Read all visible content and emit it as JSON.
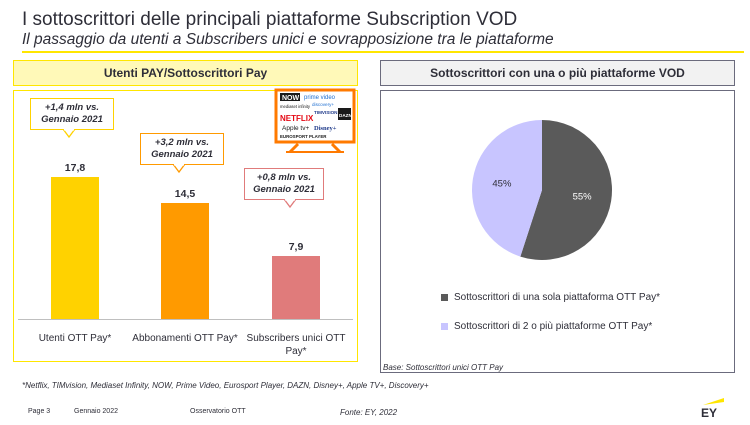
{
  "header": {
    "title": "I sottoscrittori delle principali piattaforme Subscription VOD",
    "subtitle": "Il passaggio da utenti a Subscribers unici e sovrapposizione tra le piattaforme"
  },
  "left_panel": {
    "header": "Utenti PAY/Sottoscrittori Pay",
    "tv_logos": [
      "NOW",
      "prime video",
      "mediaset infinity",
      "discovery+",
      "TIMVISION",
      "DAZN",
      "NETFLIX",
      "Apple tv+",
      "Disney+",
      "EUROSPORT PLAYER"
    ]
  },
  "right_panel": {
    "header": "Sottoscrittori con una o più piattaforme VOD",
    "base_note": "Base: Sottoscrittori unici OTT Pay"
  },
  "chart_data": [
    {
      "type": "bar",
      "categories": [
        "Utenti OTT Pay*",
        "Abbonamenti OTT Pay*",
        "Subscribers unici OTT Pay*"
      ],
      "values": [
        17.8,
        14.5,
        7.9
      ],
      "value_labels": [
        "17,8",
        "14,5",
        "7,9"
      ],
      "colors": [
        "#ffd200",
        "#ff9a00",
        "#e07b7b"
      ],
      "callouts": [
        "+1,4 mln vs. Gennaio 2021",
        "+3,2 mln vs. Gennaio 2021",
        "+0,8 mln vs. Gennaio 2021"
      ],
      "callout_lines": [
        [
          "+1,4 mln vs.",
          "Gennaio 2021"
        ],
        [
          "+3,2 mln vs.",
          "Gennaio 2021"
        ],
        [
          "+0,8 mln vs.",
          "Gennaio 2021"
        ]
      ],
      "callout_colors": [
        "#ffd200",
        "#ff9a00",
        "#e07b7b"
      ],
      "ylim": [
        0,
        20
      ],
      "grid": false
    },
    {
      "type": "pie",
      "labels": [
        "Sottoscrittori di una sola piattaforma OTT Pay*",
        "Sottoscrittori di 2 o più piattaforme OTT Pay*"
      ],
      "values": [
        55,
        45
      ],
      "value_labels": [
        "55%",
        "45%"
      ],
      "colors": [
        "#5a5a5a",
        "#c8c5ff"
      ],
      "legend": "bottom"
    }
  ],
  "footer": {
    "footnote": "*Netflix, TIMvision, Mediaset Infinity, NOW, Prime Video, Eurosport Player, DAZN, Disney+, Apple TV+, Discovery+",
    "page": "Page 3",
    "date": "Gennaio 2022",
    "source_name": "Osservatorio OTT",
    "source": "Fonte: EY, 2022",
    "logo_text": "EY"
  }
}
